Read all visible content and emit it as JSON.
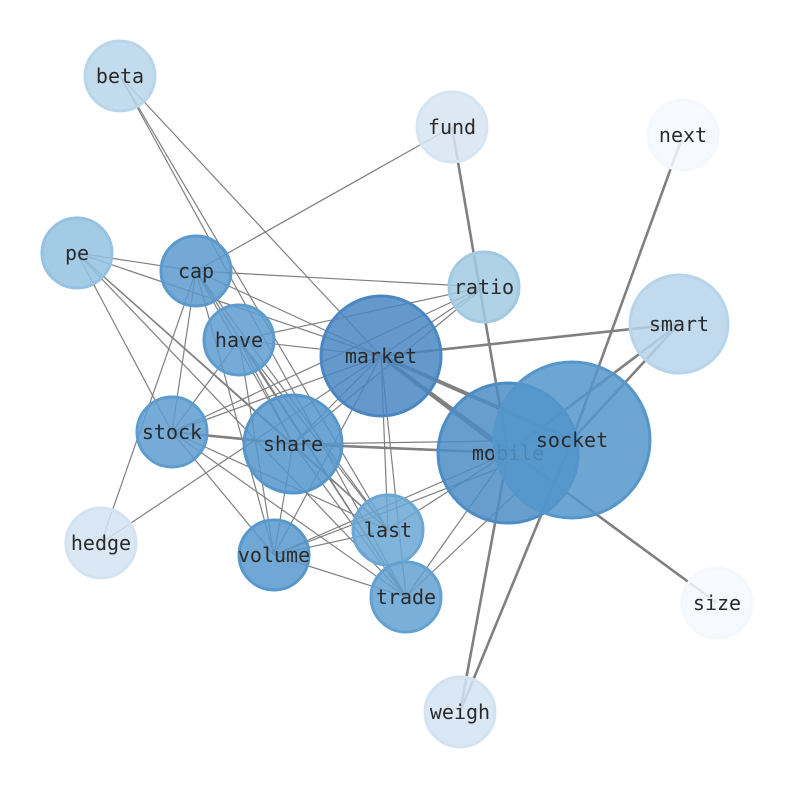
{
  "nodes": [
    {
      "id": "beta",
      "color": "#b9d6ea"
    },
    {
      "id": "fund",
      "color": "#d6e5f3"
    },
    {
      "id": "next",
      "color": "#f4f8fd"
    },
    {
      "id": "pe",
      "color": "#94c2e0"
    },
    {
      "id": "cap",
      "color": "#5a9acd"
    },
    {
      "id": "ratio",
      "color": "#a2cae3"
    },
    {
      "id": "smart",
      "color": "#b7d4ea"
    },
    {
      "id": "have",
      "color": "#5d9ccf"
    },
    {
      "id": "market",
      "color": "#4a86c2"
    },
    {
      "id": "stock",
      "color": "#5d9ccf"
    },
    {
      "id": "share",
      "color": "#5596cb"
    },
    {
      "id": "mobile",
      "color": "#4d8dc6"
    },
    {
      "id": "socket",
      "color": "#5596cb"
    },
    {
      "id": "hedge",
      "color": "#d4e3f2"
    },
    {
      "id": "last",
      "color": "#6aa7d4"
    },
    {
      "id": "volume",
      "color": "#5798cc"
    },
    {
      "id": "trade",
      "color": "#63a1d2"
    },
    {
      "id": "size",
      "color": "#f4f8fd"
    },
    {
      "id": "weigh",
      "color": "#d4e3f2"
    }
  ],
  "edges": [
    [
      "beta",
      "market",
      1
    ],
    [
      "beta",
      "last",
      1
    ],
    [
      "beta",
      "trade",
      1
    ],
    [
      "fund",
      "cap",
      1
    ],
    [
      "fund",
      "mobile",
      2
    ],
    [
      "next",
      "socket",
      2
    ],
    [
      "pe",
      "cap",
      1
    ],
    [
      "pe",
      "market",
      1
    ],
    [
      "pe",
      "share",
      1
    ],
    [
      "pe",
      "stock",
      1
    ],
    [
      "pe",
      "trade",
      1
    ],
    [
      "pe",
      "last",
      1
    ],
    [
      "cap",
      "ratio",
      1
    ],
    [
      "cap",
      "market",
      1
    ],
    [
      "cap",
      "stock",
      1
    ],
    [
      "cap",
      "volume",
      1
    ],
    [
      "cap",
      "hedge",
      1
    ],
    [
      "cap",
      "last",
      1
    ],
    [
      "cap",
      "trade",
      1
    ],
    [
      "cap",
      "share",
      1
    ],
    [
      "have",
      "ratio",
      1
    ],
    [
      "have",
      "market",
      1
    ],
    [
      "have",
      "stock",
      1
    ],
    [
      "have",
      "share",
      1
    ],
    [
      "have",
      "volume",
      1
    ],
    [
      "have",
      "last",
      1
    ],
    [
      "have",
      "trade",
      1
    ],
    [
      "ratio",
      "stock",
      1
    ],
    [
      "ratio",
      "market",
      1
    ],
    [
      "ratio",
      "share",
      1
    ],
    [
      "market",
      "smart",
      2
    ],
    [
      "market",
      "socket",
      3
    ],
    [
      "market",
      "mobile",
      3
    ],
    [
      "market",
      "stock",
      1
    ],
    [
      "market",
      "share",
      1
    ],
    [
      "market",
      "volume",
      1
    ],
    [
      "market",
      "trade",
      1
    ],
    [
      "market",
      "last",
      1
    ],
    [
      "market",
      "hedge",
      1
    ],
    [
      "market",
      "size",
      2
    ],
    [
      "smart",
      "socket",
      2
    ],
    [
      "smart",
      "mobile",
      2
    ],
    [
      "stock",
      "share",
      2
    ],
    [
      "stock",
      "volume",
      1
    ],
    [
      "stock",
      "trade",
      1
    ],
    [
      "stock",
      "last",
      1
    ],
    [
      "share",
      "mobile",
      2
    ],
    [
      "share",
      "socket",
      1
    ],
    [
      "share",
      "volume",
      1
    ],
    [
      "share",
      "last",
      1
    ],
    [
      "share",
      "trade",
      1
    ],
    [
      "volume",
      "mobile",
      1
    ],
    [
      "volume",
      "socket",
      1
    ],
    [
      "volume",
      "last",
      1
    ],
    [
      "volume",
      "trade",
      1
    ],
    [
      "last",
      "mobile",
      1
    ],
    [
      "trade",
      "mobile",
      1
    ],
    [
      "trade",
      "socket",
      1
    ],
    [
      "weigh",
      "mobile",
      2
    ],
    [
      "weigh",
      "socket",
      2
    ]
  ],
  "edge_color": "#808080"
}
